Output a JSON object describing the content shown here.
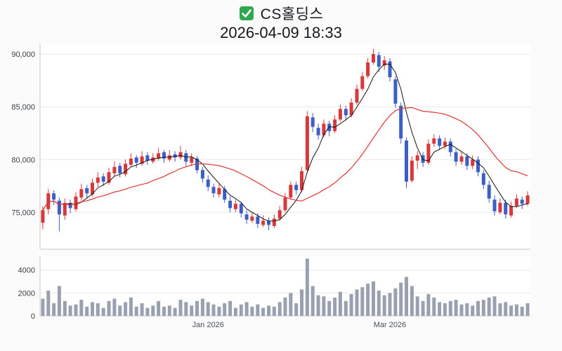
{
  "header": {
    "title": "CS홀딩스",
    "timestamp": "2026-04-09 18:33",
    "icon": "checkbox-checked-icon",
    "icon_color": "#2fa84f"
  },
  "chart_data": {
    "type": "candlestick",
    "title": "CS홀딩스",
    "subtitle": "2026-04-09 18:33",
    "grid": true,
    "legend": false,
    "up_color": "#d8383a",
    "down_color": "#3b5fc7",
    "volume_color": "#99a1b0",
    "plot_bg": "#ffffff",
    "axis_line_color": "#c9c9c9",
    "grid_color": "#e9e9e9",
    "price_axis": {
      "ylim": [
        71500,
        91000
      ],
      "ticks": [
        75000,
        80000,
        85000,
        90000
      ],
      "labels": [
        "75,000",
        "80,000",
        "85,000",
        "90,000"
      ]
    },
    "volume_axis": {
      "ylim": [
        0,
        5200
      ],
      "ticks": [
        0,
        2000,
        4000
      ],
      "labels": [
        "0",
        "2000",
        "4000"
      ]
    },
    "x_ticks": [
      {
        "index": 30,
        "label": "Jan 2026"
      },
      {
        "index": 63,
        "label": "Mar 2026"
      }
    ],
    "ma_short": {
      "period": 5,
      "color": "#141414",
      "name": "MA5"
    },
    "ma_long": {
      "period": 20,
      "color": "#e23434",
      "name": "MA20"
    },
    "candles_format": [
      "open",
      "high",
      "low",
      "close",
      "volume"
    ],
    "candles": [
      [
        74000,
        75600,
        73400,
        75200,
        1500
      ],
      [
        75300,
        77200,
        74800,
        76800,
        2200
      ],
      [
        76800,
        77100,
        75700,
        76200,
        1100
      ],
      [
        76100,
        76400,
        73200,
        74800,
        2600
      ],
      [
        74700,
        76300,
        74300,
        75900,
        1300
      ],
      [
        75900,
        76200,
        74900,
        75400,
        900
      ],
      [
        75300,
        76900,
        75100,
        76500,
        1000
      ],
      [
        76400,
        77700,
        76100,
        77200,
        1400
      ],
      [
        77300,
        77600,
        76300,
        76800,
        800
      ],
      [
        76700,
        78200,
        76500,
        77800,
        1200
      ],
      [
        77800,
        78800,
        77400,
        78300,
        1100
      ],
      [
        78400,
        78700,
        77500,
        77900,
        700
      ],
      [
        77800,
        79200,
        77600,
        78800,
        1300
      ],
      [
        78700,
        79800,
        78400,
        79300,
        1500
      ],
      [
        79400,
        79700,
        78300,
        78700,
        900
      ],
      [
        78600,
        80000,
        78400,
        79600,
        1200
      ],
      [
        79500,
        80600,
        79300,
        80100,
        1600
      ],
      [
        80200,
        80400,
        79200,
        79700,
        800
      ],
      [
        79600,
        80800,
        79400,
        80300,
        1100
      ],
      [
        80400,
        80700,
        79500,
        79900,
        700
      ],
      [
        79800,
        80600,
        79600,
        80200,
        900
      ],
      [
        80100,
        81100,
        79900,
        80600,
        1300
      ],
      [
        80700,
        80900,
        79700,
        80100,
        800
      ],
      [
        80000,
        80900,
        79800,
        80400,
        900
      ],
      [
        80500,
        80800,
        79800,
        80200,
        700
      ],
      [
        80200,
        81300,
        80000,
        80700,
        1400
      ],
      [
        80600,
        80900,
        79400,
        79800,
        1200
      ],
      [
        79700,
        80600,
        79400,
        80200,
        900
      ],
      [
        80100,
        80300,
        78700,
        79000,
        1300
      ],
      [
        79000,
        79300,
        77800,
        78200,
        1500
      ],
      [
        78100,
        78500,
        77000,
        77400,
        1200
      ],
      [
        77400,
        77700,
        76400,
        76800,
        1000
      ],
      [
        76700,
        77700,
        76400,
        77300,
        800
      ],
      [
        77200,
        77500,
        75900,
        76200,
        1100
      ],
      [
        76100,
        76500,
        75000,
        75400,
        1300
      ],
      [
        75300,
        76200,
        75000,
        75800,
        700
      ],
      [
        75800,
        76000,
        74500,
        74900,
        1000
      ],
      [
        74800,
        75200,
        73900,
        74300,
        1200
      ],
      [
        74200,
        75000,
        74000,
        74600,
        800
      ],
      [
        74600,
        74900,
        73500,
        73900,
        1000
      ],
      [
        73800,
        74700,
        73600,
        74200,
        700
      ],
      [
        74200,
        74500,
        73300,
        73800,
        900
      ],
      [
        73700,
        74800,
        73500,
        74400,
        800
      ],
      [
        74400,
        75600,
        74200,
        75200,
        1200
      ],
      [
        75200,
        76800,
        75000,
        76400,
        1600
      ],
      [
        76400,
        77900,
        76200,
        77600,
        2000
      ],
      [
        77600,
        77900,
        76700,
        77100,
        1100
      ],
      [
        77100,
        79300,
        76900,
        78900,
        2300
      ],
      [
        79000,
        84600,
        78800,
        84100,
        5000
      ],
      [
        84000,
        84400,
        82600,
        83100,
        2600
      ],
      [
        83000,
        83400,
        81900,
        82300,
        1800
      ],
      [
        82300,
        83800,
        82100,
        83400,
        1700
      ],
      [
        83400,
        83700,
        82200,
        82700,
        1300
      ],
      [
        82700,
        84200,
        82500,
        83800,
        1600
      ],
      [
        83800,
        85200,
        83600,
        84800,
        2100
      ],
      [
        84800,
        85100,
        83700,
        84200,
        1300
      ],
      [
        84200,
        85800,
        84000,
        85400,
        1900
      ],
      [
        85400,
        87100,
        85200,
        86700,
        2300
      ],
      [
        86700,
        88300,
        86500,
        87900,
        2500
      ],
      [
        87900,
        89600,
        87700,
        89200,
        2800
      ],
      [
        89200,
        90500,
        89000,
        90000,
        3000
      ],
      [
        89900,
        90200,
        88300,
        88800,
        2200
      ],
      [
        88900,
        89800,
        88500,
        89400,
        1800
      ],
      [
        89300,
        89600,
        87400,
        87800,
        2000
      ],
      [
        87600,
        87900,
        84900,
        85300,
        2400
      ],
      [
        85100,
        85400,
        81500,
        82000,
        2900
      ],
      [
        81800,
        82100,
        77300,
        77900,
        3400
      ],
      [
        78000,
        80300,
        77800,
        79900,
        2600
      ],
      [
        79900,
        80800,
        79100,
        80400,
        1700
      ],
      [
        80400,
        80700,
        79300,
        79700,
        1300
      ],
      [
        79700,
        81900,
        79500,
        81500,
        1900
      ],
      [
        81500,
        82400,
        81200,
        82000,
        1600
      ],
      [
        82000,
        82300,
        80900,
        81300,
        1200
      ],
      [
        81300,
        82100,
        81000,
        81700,
        1100
      ],
      [
        81700,
        82000,
        80300,
        80700,
        1300
      ],
      [
        80700,
        81000,
        79400,
        79800,
        1400
      ],
      [
        79800,
        80700,
        79500,
        80300,
        1000
      ],
      [
        80300,
        80600,
        79000,
        79400,
        1100
      ],
      [
        79400,
        80400,
        79100,
        80000,
        900
      ],
      [
        80000,
        80300,
        78400,
        78800,
        1300
      ],
      [
        78700,
        79000,
        77200,
        77600,
        1400
      ],
      [
        77600,
        78000,
        75900,
        76300,
        1600
      ],
      [
        76200,
        76600,
        74700,
        75100,
        1700
      ],
      [
        75000,
        76300,
        74800,
        75900,
        1100
      ],
      [
        75900,
        76200,
        74400,
        74800,
        1200
      ],
      [
        74700,
        76000,
        74500,
        75600,
        900
      ],
      [
        75600,
        76700,
        75400,
        76300,
        1000
      ],
      [
        76200,
        76500,
        75300,
        75800,
        800
      ],
      [
        75800,
        77000,
        75600,
        76600,
        1100
      ]
    ]
  }
}
